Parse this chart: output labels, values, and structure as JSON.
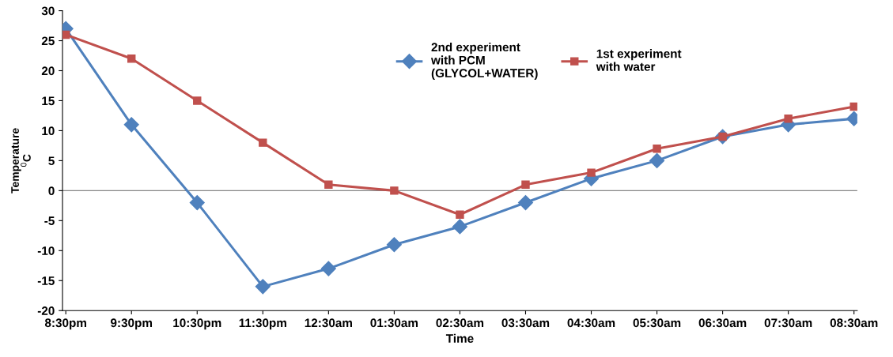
{
  "chart_data": {
    "type": "line",
    "xlabel": "Time",
    "ylabel": "Temperature\n$^{0}$C",
    "categories": [
      "8:30pm",
      "9:30pm",
      "10:30pm",
      "11:30pm",
      "12:30am",
      "01:30am",
      "02:30am",
      "03:30am",
      "04:30am",
      "05:30am",
      "06:30am",
      "07:30am",
      "08:30am"
    ],
    "series": [
      {
        "name": "2nd experiment\nwith PCM\n(GLYCOL+WATER)",
        "color": "#4f81bd",
        "marker": "diamond",
        "values": [
          27,
          11,
          -2,
          -16,
          -13,
          -9,
          -6,
          -2,
          2,
          5,
          9,
          11,
          12
        ]
      },
      {
        "name": "1st experiment\nwith water",
        "color": "#c0504d",
        "marker": "square",
        "values": [
          26,
          22,
          15,
          8,
          1,
          0,
          -4,
          1,
          3,
          7,
          9,
          12,
          14
        ]
      }
    ],
    "ylim": [
      -20,
      30
    ],
    "yticks": [
      -20,
      -15,
      -10,
      -5,
      0,
      5,
      10,
      15,
      20,
      25,
      30
    ],
    "ref_lines": [
      {
        "axis": "y",
        "value": 0,
        "color": "#868686",
        "line_style": "solid"
      }
    ],
    "grid": false,
    "legend": "top",
    "line_style": "solid"
  }
}
